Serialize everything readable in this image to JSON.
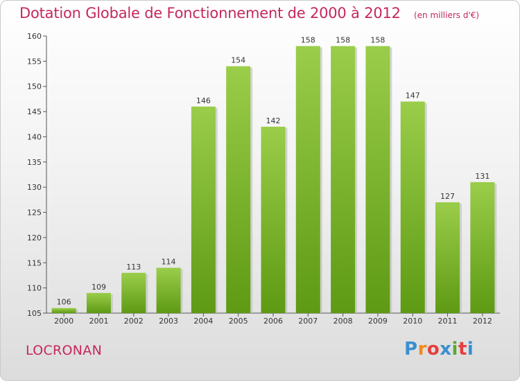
{
  "title": "Dotation Globale de Fonctionnement de 2000 à 2012",
  "subtitle": "(en milliers d'€)",
  "commune": "LOCRONAN",
  "logo": {
    "text": "Proxiti",
    "colors": [
      "#3a8fd0",
      "#f08a1c",
      "#e43f3f",
      "#3a8fd0",
      "#5aa832",
      "#e43f3f",
      "#3a8fd0"
    ]
  },
  "colors": {
    "title": "#c4285c",
    "bar_top": "#9acd4a",
    "bar_bottom": "#5e9a14",
    "axis": "#555555"
  },
  "chart_data": {
    "type": "bar",
    "title": "Dotation Globale de Fonctionnement de 2000 à 2012",
    "subtitle": "(en milliers d'€)",
    "categories": [
      "2000",
      "2001",
      "2002",
      "2003",
      "2004",
      "2005",
      "2006",
      "2007",
      "2008",
      "2009",
      "2010",
      "2011",
      "2012"
    ],
    "values": [
      106,
      109,
      113,
      114,
      146,
      154,
      142,
      158,
      158,
      158,
      147,
      127,
      131
    ],
    "ylim": [
      105,
      160
    ],
    "yticks": [
      105,
      110,
      115,
      120,
      125,
      130,
      135,
      140,
      145,
      150,
      155,
      160
    ],
    "xlabel": "",
    "ylabel": "",
    "grid": false,
    "legend": "none"
  }
}
